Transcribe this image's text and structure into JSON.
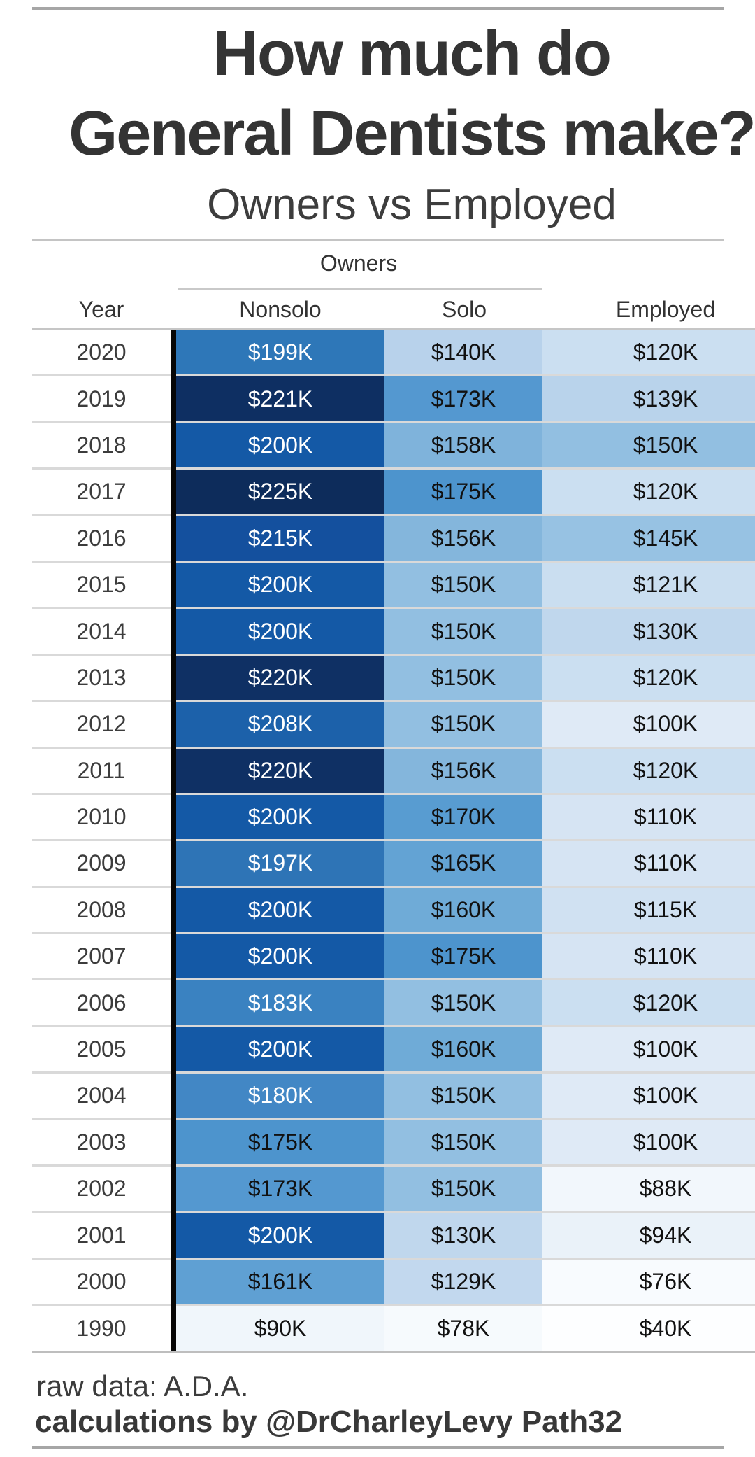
{
  "title": {
    "line1": "How much do",
    "line2": "General Dentists make?",
    "subtitle": "Owners vs Employed"
  },
  "table": {
    "group_header": "Owners",
    "columns": [
      "Year",
      "Nonsolo",
      "Solo",
      "Employed"
    ],
    "rows": [
      {
        "year": "2020",
        "cells": [
          {
            "label": "$199K",
            "value": 199,
            "bg": "#2E77B8"
          },
          {
            "label": "$140K",
            "value": 140,
            "bg": "#B8D2EB"
          },
          {
            "label": "$120K",
            "value": 120,
            "bg": "#CBDFF1"
          }
        ]
      },
      {
        "year": "2019",
        "cells": [
          {
            "label": "$221K",
            "value": 221,
            "bg": "#0E2F62"
          },
          {
            "label": "$173K",
            "value": 173,
            "bg": "#5498D0"
          },
          {
            "label": "$139K",
            "value": 139,
            "bg": "#B9D3EB"
          }
        ]
      },
      {
        "year": "2018",
        "cells": [
          {
            "label": "$200K",
            "value": 200,
            "bg": "#1459A6"
          },
          {
            "label": "$158K",
            "value": 158,
            "bg": "#7FB3DB"
          },
          {
            "label": "$150K",
            "value": 150,
            "bg": "#92BFE1"
          }
        ]
      },
      {
        "year": "2017",
        "cells": [
          {
            "label": "$225K",
            "value": 225,
            "bg": "#0D2C5B"
          },
          {
            "label": "$175K",
            "value": 175,
            "bg": "#4D94CD"
          },
          {
            "label": "$120K",
            "value": 120,
            "bg": "#CBDFF1"
          }
        ]
      },
      {
        "year": "2016",
        "cells": [
          {
            "label": "$215K",
            "value": 215,
            "bg": "#14509E"
          },
          {
            "label": "$156K",
            "value": 156,
            "bg": "#84B6DC"
          },
          {
            "label": "$145K",
            "value": 145,
            "bg": "#97C2E3"
          }
        ]
      },
      {
        "year": "2015",
        "cells": [
          {
            "label": "$200K",
            "value": 200,
            "bg": "#1459A6"
          },
          {
            "label": "$150K",
            "value": 150,
            "bg": "#92BFE1"
          },
          {
            "label": "$121K",
            "value": 121,
            "bg": "#CADEF0"
          }
        ]
      },
      {
        "year": "2014",
        "cells": [
          {
            "label": "$200K",
            "value": 200,
            "bg": "#1459A6"
          },
          {
            "label": "$150K",
            "value": 150,
            "bg": "#92BFE1"
          },
          {
            "label": "$130K",
            "value": 130,
            "bg": "#C0D7ED"
          }
        ]
      },
      {
        "year": "2013",
        "cells": [
          {
            "label": "$220K",
            "value": 220,
            "bg": "#0F3064"
          },
          {
            "label": "$150K",
            "value": 150,
            "bg": "#92BFE1"
          },
          {
            "label": "$120K",
            "value": 120,
            "bg": "#CBDFF1"
          }
        ]
      },
      {
        "year": "2012",
        "cells": [
          {
            "label": "$208K",
            "value": 208,
            "bg": "#1C61AA"
          },
          {
            "label": "$150K",
            "value": 150,
            "bg": "#92BFE1"
          },
          {
            "label": "$100K",
            "value": 100,
            "bg": "#DFEAF6"
          }
        ]
      },
      {
        "year": "2011",
        "cells": [
          {
            "label": "$220K",
            "value": 220,
            "bg": "#0F3064"
          },
          {
            "label": "$156K",
            "value": 156,
            "bg": "#84B6DC"
          },
          {
            "label": "$120K",
            "value": 120,
            "bg": "#CBDFF1"
          }
        ]
      },
      {
        "year": "2010",
        "cells": [
          {
            "label": "$200K",
            "value": 200,
            "bg": "#1459A6"
          },
          {
            "label": "$170K",
            "value": 170,
            "bg": "#589CD1"
          },
          {
            "label": "$110K",
            "value": 110,
            "bg": "#D6E4F3"
          }
        ]
      },
      {
        "year": "2009",
        "cells": [
          {
            "label": "$197K",
            "value": 197,
            "bg": "#2E74B6"
          },
          {
            "label": "$165K",
            "value": 165,
            "bg": "#63A3D4"
          },
          {
            "label": "$110K",
            "value": 110,
            "bg": "#D6E4F3"
          }
        ]
      },
      {
        "year": "2008",
        "cells": [
          {
            "label": "$200K",
            "value": 200,
            "bg": "#1459A6"
          },
          {
            "label": "$160K",
            "value": 160,
            "bg": "#6FABD7"
          },
          {
            "label": "$115K",
            "value": 115,
            "bg": "#D0E1F2"
          }
        ]
      },
      {
        "year": "2007",
        "cells": [
          {
            "label": "$200K",
            "value": 200,
            "bg": "#1459A6"
          },
          {
            "label": "$175K",
            "value": 175,
            "bg": "#4D94CD"
          },
          {
            "label": "$110K",
            "value": 110,
            "bg": "#D6E4F3"
          }
        ]
      },
      {
        "year": "2006",
        "cells": [
          {
            "label": "$183K",
            "value": 183,
            "bg": "#3A82C1"
          },
          {
            "label": "$150K",
            "value": 150,
            "bg": "#92BFE1"
          },
          {
            "label": "$120K",
            "value": 120,
            "bg": "#CBDFF1"
          }
        ]
      },
      {
        "year": "2005",
        "cells": [
          {
            "label": "$200K",
            "value": 200,
            "bg": "#1459A6"
          },
          {
            "label": "$160K",
            "value": 160,
            "bg": "#6FABD7"
          },
          {
            "label": "$100K",
            "value": 100,
            "bg": "#DFEAF6"
          }
        ]
      },
      {
        "year": "2004",
        "cells": [
          {
            "label": "$180K",
            "value": 180,
            "bg": "#4287C5"
          },
          {
            "label": "$150K",
            "value": 150,
            "bg": "#92BFE1"
          },
          {
            "label": "$100K",
            "value": 100,
            "bg": "#DFEAF6"
          }
        ]
      },
      {
        "year": "2003",
        "cells": [
          {
            "label": "$175K",
            "value": 175,
            "bg": "#4D94CD"
          },
          {
            "label": "$150K",
            "value": 150,
            "bg": "#92BFE1"
          },
          {
            "label": "$100K",
            "value": 100,
            "bg": "#DFEAF6"
          }
        ]
      },
      {
        "year": "2002",
        "cells": [
          {
            "label": "$173K",
            "value": 173,
            "bg": "#5498D0"
          },
          {
            "label": "$150K",
            "value": 150,
            "bg": "#92BFE1"
          },
          {
            "label": "$88K",
            "value": 88,
            "bg": "#F2F7FC"
          }
        ]
      },
      {
        "year": "2001",
        "cells": [
          {
            "label": "$200K",
            "value": 200,
            "bg": "#1459A6"
          },
          {
            "label": "$130K",
            "value": 130,
            "bg": "#C0D7ED"
          },
          {
            "label": "$94K",
            "value": 94,
            "bg": "#EAF2F9"
          }
        ]
      },
      {
        "year": "2000",
        "cells": [
          {
            "label": "$161K",
            "value": 161,
            "bg": "#5FA0D3"
          },
          {
            "label": "$129K",
            "value": 129,
            "bg": "#C2D8EE"
          },
          {
            "label": "$76K",
            "value": 76,
            "bg": "#F8FBFE"
          }
        ]
      },
      {
        "year": "1990",
        "cells": [
          {
            "label": "$90K",
            "value": 90,
            "bg": "#F0F6FB"
          },
          {
            "label": "$78K",
            "value": 78,
            "bg": "#F6FAFD"
          },
          {
            "label": "$40K",
            "value": 40,
            "bg": "#FDFEFF"
          }
        ]
      }
    ]
  },
  "footer": {
    "line1": "raw data: A.D.A.",
    "line2": "calculations by @DrCharleyLevy Path32"
  },
  "colors": {
    "divider_dark": "#a6a6a6",
    "divider_light": "#d9d9d9",
    "year_divider_bar": "#060606",
    "cell_text_dark": "#111111",
    "cell_text_light": "#ffffff",
    "heat_min_color": "#FFFFFF",
    "heat_max_color": "#0D2C5B"
  },
  "chart_data": {
    "type": "heatmap",
    "title": "How much do General Dentists make?",
    "subtitle": "Owners vs Employed",
    "row_label": "Year",
    "categories": [
      "2020",
      "2019",
      "2018",
      "2017",
      "2016",
      "2015",
      "2014",
      "2013",
      "2012",
      "2011",
      "2010",
      "2009",
      "2008",
      "2007",
      "2006",
      "2005",
      "2004",
      "2003",
      "2002",
      "2001",
      "2000",
      "1990"
    ],
    "column_groups": [
      {
        "label": "Owners",
        "columns": [
          "Nonsolo",
          "Solo"
        ]
      },
      {
        "label": "",
        "columns": [
          "Employed"
        ]
      }
    ],
    "series": [
      {
        "name": "Nonsolo",
        "values": [
          199,
          221,
          200,
          225,
          215,
          200,
          200,
          220,
          208,
          220,
          200,
          197,
          200,
          200,
          183,
          200,
          180,
          175,
          173,
          200,
          161,
          90
        ]
      },
      {
        "name": "Solo",
        "values": [
          140,
          173,
          158,
          175,
          156,
          150,
          150,
          150,
          150,
          156,
          170,
          165,
          160,
          175,
          150,
          160,
          150,
          150,
          150,
          130,
          129,
          78
        ]
      },
      {
        "name": "Employed",
        "values": [
          120,
          139,
          150,
          120,
          145,
          121,
          130,
          120,
          100,
          120,
          110,
          110,
          115,
          110,
          120,
          100,
          100,
          100,
          88,
          94,
          76,
          40
        ]
      }
    ],
    "value_unit": "$K",
    "color_scale": {
      "min_value": 40,
      "max_value": 225,
      "min_color": "#FFFFFF",
      "max_color": "#0D2C5B"
    },
    "source_note": "raw data: A.D.A.",
    "credit": "calculations by @DrCharleyLevy Path32"
  }
}
